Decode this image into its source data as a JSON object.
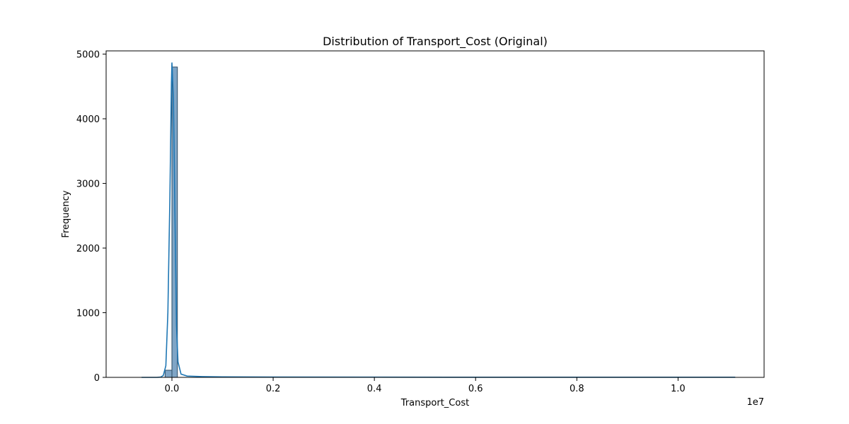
{
  "chart_data": {
    "type": "bar",
    "subtype": "histogram-with-kde",
    "title": "Distribution of Transport_Cost (Original)",
    "xlabel": "Transport_Cost",
    "ylabel": "Frequency",
    "x_offset_label": "1e7",
    "xlim": [
      -0.13,
      1.17
    ],
    "ylim": [
      0,
      5050
    ],
    "x_unit_scale": 10000000,
    "xticks": [
      {
        "value": 0.0,
        "label": "0.0"
      },
      {
        "value": 0.2,
        "label": "0.2"
      },
      {
        "value": 0.4,
        "label": "0.4"
      },
      {
        "value": 0.6,
        "label": "0.6"
      },
      {
        "value": 0.8,
        "label": "0.8"
      },
      {
        "value": 1.0,
        "label": "1.0"
      }
    ],
    "yticks": [
      {
        "value": 0,
        "label": "0"
      },
      {
        "value": 1000,
        "label": "1000"
      },
      {
        "value": 2000,
        "label": "2000"
      },
      {
        "value": 3000,
        "label": "3000"
      },
      {
        "value": 4000,
        "label": "4000"
      },
      {
        "value": 5000,
        "label": "5000"
      }
    ],
    "bins": [
      {
        "x0": -0.0135,
        "x1": 0.0,
        "count": 110
      },
      {
        "x0": 0.0,
        "x1": 0.0108,
        "count": 4800
      }
    ],
    "kde": {
      "x": [
        -0.06,
        -0.03,
        -0.022,
        -0.017,
        -0.012,
        -0.008,
        -0.004,
        -0.001,
        0.0,
        0.003,
        0.006,
        0.009,
        0.012,
        0.018,
        0.03,
        0.06,
        0.1,
        0.2,
        0.4,
        0.6,
        0.8,
        1.0,
        1.113
      ],
      "y": [
        0,
        0,
        5,
        30,
        180,
        1000,
        2800,
        4550,
        4870,
        4300,
        2500,
        800,
        240,
        50,
        20,
        12,
        8,
        5,
        3,
        2,
        2,
        2,
        2
      ]
    },
    "grid": false,
    "legend": "none",
    "colors": {
      "bar_fill": "#7fa5c6",
      "bar_edge": "#2b4a63",
      "kde_line": "#1f77b4"
    }
  }
}
